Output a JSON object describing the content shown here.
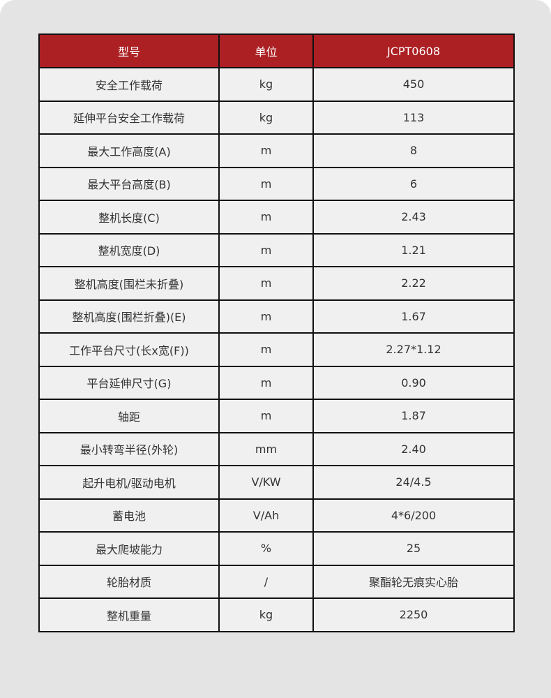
{
  "header": {
    "model": "型号",
    "unit": "单位",
    "value": "JCPT0608"
  },
  "rows": [
    {
      "name": "安全工作载荷",
      "unit": "kg",
      "value": "450"
    },
    {
      "name": "延伸平台安全工作载荷",
      "unit": "kg",
      "value": "113"
    },
    {
      "name": "最大工作高度(A)",
      "unit": "m",
      "value": "8"
    },
    {
      "name": "最大平台高度(B)",
      "unit": "m",
      "value": "6"
    },
    {
      "name": "整机长度(C)",
      "unit": "m",
      "value": "2.43"
    },
    {
      "name": "整机宽度(D)",
      "unit": "m",
      "value": "1.21"
    },
    {
      "name": "整机高度(围栏未折叠)",
      "unit": "m",
      "value": "2.22"
    },
    {
      "name": "整机高度(围栏折叠)(E)",
      "unit": "m",
      "value": "1.67"
    },
    {
      "name": "工作平台尺寸(长x宽(F))",
      "unit": "m",
      "value": "2.27*1.12"
    },
    {
      "name": "平台延伸尺寸(G)",
      "unit": "m",
      "value": "0.90"
    },
    {
      "name": "轴距",
      "unit": "m",
      "value": "1.87"
    },
    {
      "name": "最小转弯半径(外轮)",
      "unit": "mm",
      "value": "2.40"
    },
    {
      "name": "起升电机/驱动电机",
      "unit": "V/KW",
      "value": "24/4.5"
    },
    {
      "name": "蓄电池",
      "unit": "V/Ah",
      "value": "4*6/200"
    },
    {
      "name": "最大爬坡能力",
      "unit": "%",
      "value": "25"
    },
    {
      "name": "轮胎材质",
      "unit": "/",
      "value": "聚酯轮无痕实心胎"
    },
    {
      "name": "整机重量",
      "unit": "kg",
      "value": "2250"
    }
  ],
  "colors": {
    "header": "#ac2024",
    "cell": "#f0f0f0",
    "panel": "#e4e4e4"
  }
}
